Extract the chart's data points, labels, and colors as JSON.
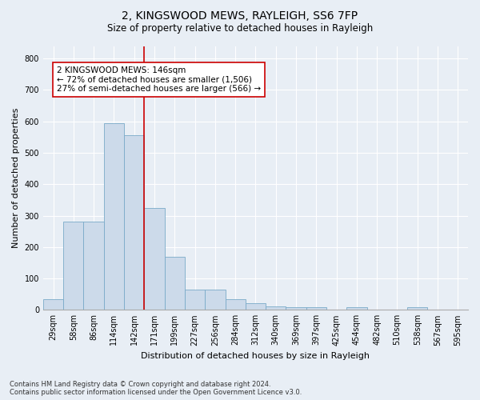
{
  "title1": "2, KINGSWOOD MEWS, RAYLEIGH, SS6 7FP",
  "title2": "Size of property relative to detached houses in Rayleigh",
  "xlabel": "Distribution of detached houses by size in Rayleigh",
  "ylabel": "Number of detached properties",
  "bin_labels": [
    "29sqm",
    "58sqm",
    "86sqm",
    "114sqm",
    "142sqm",
    "171sqm",
    "199sqm",
    "227sqm",
    "256sqm",
    "284sqm",
    "312sqm",
    "340sqm",
    "369sqm",
    "397sqm",
    "425sqm",
    "454sqm",
    "482sqm",
    "510sqm",
    "538sqm",
    "567sqm",
    "595sqm"
  ],
  "bar_heights": [
    35,
    280,
    280,
    595,
    555,
    325,
    170,
    65,
    65,
    35,
    20,
    12,
    8,
    8,
    0,
    8,
    0,
    0,
    8,
    0,
    0
  ],
  "bar_color": "#ccdaea",
  "bar_edgecolor": "#7aaac8",
  "vline_color": "#cc0000",
  "vline_x_index": 4,
  "annotation_text": "2 KINGSWOOD MEWS: 146sqm\n← 72% of detached houses are smaller (1,506)\n27% of semi-detached houses are larger (566) →",
  "annotation_box_color": "white",
  "annotation_box_edgecolor": "#cc0000",
  "ylim": [
    0,
    840
  ],
  "yticks": [
    0,
    100,
    200,
    300,
    400,
    500,
    600,
    700,
    800
  ],
  "footnote": "Contains HM Land Registry data © Crown copyright and database right 2024.\nContains public sector information licensed under the Open Government Licence v3.0.",
  "background_color": "#e8eef5",
  "axes_background_color": "#e8eef5",
  "grid_color": "white",
  "title1_fontsize": 10,
  "title2_fontsize": 8.5,
  "xlabel_fontsize": 8,
  "ylabel_fontsize": 8,
  "tick_fontsize": 7,
  "annotation_fontsize": 7.5,
  "footnote_fontsize": 6
}
